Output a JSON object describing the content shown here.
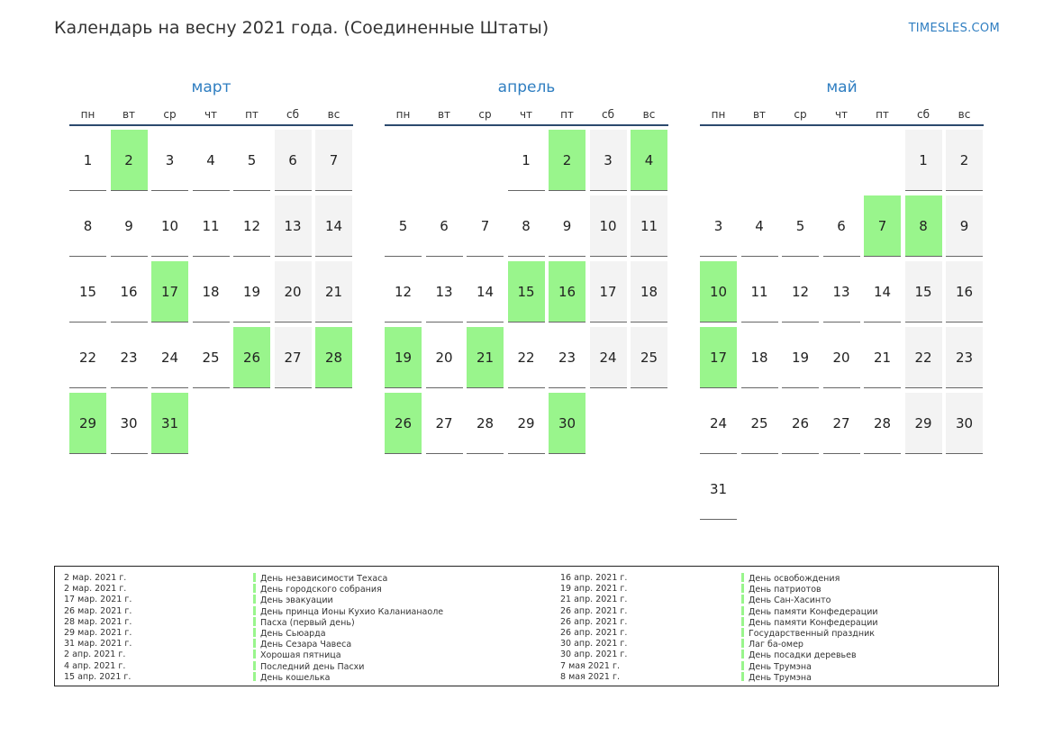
{
  "header": {
    "title": "Календарь на весну 2021 года. (Соединенные Штаты)",
    "site": "TIMESLES.COM"
  },
  "weekdays": [
    "пн",
    "вт",
    "ср",
    "чт",
    "пт",
    "сб",
    "вс"
  ],
  "colors": {
    "holiday": "#99f58c",
    "weekend": "#f3f3f3",
    "accent": "#2f7ec1"
  },
  "months": [
    {
      "name": "март",
      "start_offset": 0,
      "days": 31,
      "holidays": [
        2,
        17,
        26,
        28,
        29,
        31
      ]
    },
    {
      "name": "апрель",
      "start_offset": 3,
      "days": 30,
      "holidays": [
        2,
        4,
        15,
        16,
        19,
        21,
        26,
        30
      ]
    },
    {
      "name": "май",
      "start_offset": 5,
      "days": 31,
      "holidays": [
        7,
        8,
        10,
        17
      ]
    }
  ],
  "legend": {
    "left": [
      {
        "date": "2 мар. 2021 г.",
        "name": "День независимости Техаса"
      },
      {
        "date": "2 мар. 2021 г.",
        "name": "День городского собрания"
      },
      {
        "date": "17 мар. 2021 г.",
        "name": "День эвакуации"
      },
      {
        "date": "26 мар. 2021 г.",
        "name": "День принца Ионы Кухио Каланианаоле"
      },
      {
        "date": "28 мар. 2021 г.",
        "name": "Пасха (первый день)"
      },
      {
        "date": "29 мар. 2021 г.",
        "name": "День Сьюарда"
      },
      {
        "date": "31 мар. 2021 г.",
        "name": "День Сезара Чавеса"
      },
      {
        "date": "2 апр. 2021 г.",
        "name": "Хорошая пятница"
      },
      {
        "date": "4 апр. 2021 г.",
        "name": "Последний день Пасхи"
      },
      {
        "date": "15 апр. 2021 г.",
        "name": "День кошелька"
      }
    ],
    "right": [
      {
        "date": "16 апр. 2021 г.",
        "name": "День освобождения"
      },
      {
        "date": "19 апр. 2021 г.",
        "name": "День патриотов"
      },
      {
        "date": "21 апр. 2021 г.",
        "name": "День Сан-Хасинто"
      },
      {
        "date": "26 апр. 2021 г.",
        "name": "День памяти Конфедерации"
      },
      {
        "date": "26 апр. 2021 г.",
        "name": "День памяти Конфедерации"
      },
      {
        "date": "26 апр. 2021 г.",
        "name": "Государственный праздник"
      },
      {
        "date": "30 апр. 2021 г.",
        "name": "Лаг ба-омер"
      },
      {
        "date": "30 апр. 2021 г.",
        "name": "День посадки деревьев"
      },
      {
        "date": "7 мая 2021 г.",
        "name": "День Трумэна"
      },
      {
        "date": "8 мая 2021 г.",
        "name": "День Трумэна"
      }
    ]
  }
}
